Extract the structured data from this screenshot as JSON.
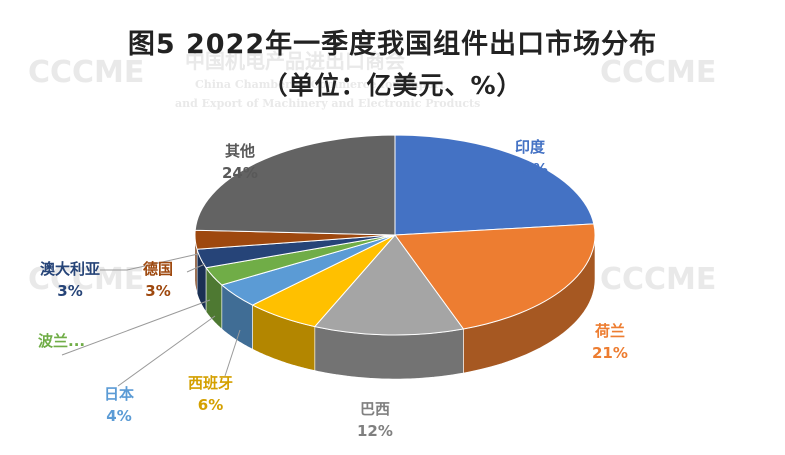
{
  "chart_data": {
    "type": "pie",
    "title_line1": "图5  2022年一季度我国组件出口市场分布",
    "title_line2": "（单位：亿美元、%）",
    "slices": [
      {
        "name": "印度",
        "value": 23,
        "label": "23%",
        "color": "#4472C4",
        "label_color": "#4472C4"
      },
      {
        "name": "荷兰",
        "value": 21,
        "label": "21%",
        "color": "#ED7D31",
        "label_color": "#ED7D31"
      },
      {
        "name": "巴西",
        "value": 12,
        "label": "12%",
        "color": "#A5A5A5",
        "label_color": "#808080"
      },
      {
        "name": "西班牙",
        "value": 6,
        "label": "6%",
        "color": "#FFC000",
        "label_color": "#D4A000"
      },
      {
        "name": "日本",
        "value": 4,
        "label": "4%",
        "color": "#5B9BD5",
        "label_color": "#5B9BD5"
      },
      {
        "name": "波兰...",
        "value": 3,
        "label": "",
        "color": "#70AD47",
        "label_color": "#70AD47"
      },
      {
        "name": "澳大利亚",
        "value": 3,
        "label": "3%",
        "color": "#264478",
        "label_color": "#264478"
      },
      {
        "name": "德国",
        "value": 3,
        "label": "3%",
        "color": "#9E480E",
        "label_color": "#9E480E"
      },
      {
        "name": "其他",
        "value": 24,
        "label": "24%",
        "color": "#636363",
        "label_color": "#595959"
      }
    ]
  },
  "watermark": {
    "logo": "CCCME",
    "cn": "中国机电产品进出口商会",
    "en1": "China Chamber of Commerce for Import",
    "en2": "and Export of Machinery and Electronic Products"
  }
}
